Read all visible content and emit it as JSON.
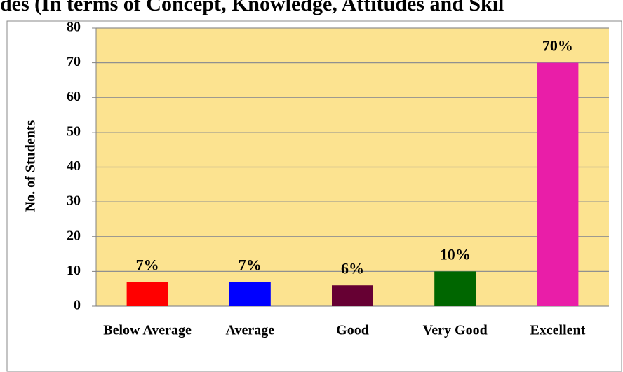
{
  "chart_data": {
    "type": "bar",
    "title": "des (In terms of Concept, Knowledge, Attitudes and Skil",
    "y_label": "No. of Students",
    "categories": [
      "Below Average",
      "Average",
      "Good",
      "Very Good",
      "Excellent"
    ],
    "values": [
      7,
      7,
      6,
      10,
      70
    ],
    "value_labels": [
      "7%",
      "7%",
      "6%",
      "10%",
      "70%"
    ],
    "colors": [
      "#ff0000",
      "#0000ff",
      "#660033",
      "#006600",
      "#e91ea8"
    ],
    "ylim": [
      0,
      80
    ],
    "yticks": [
      0,
      10,
      20,
      30,
      40,
      50,
      60,
      70,
      80
    ],
    "grid": true,
    "plot_background": "#fce390"
  }
}
